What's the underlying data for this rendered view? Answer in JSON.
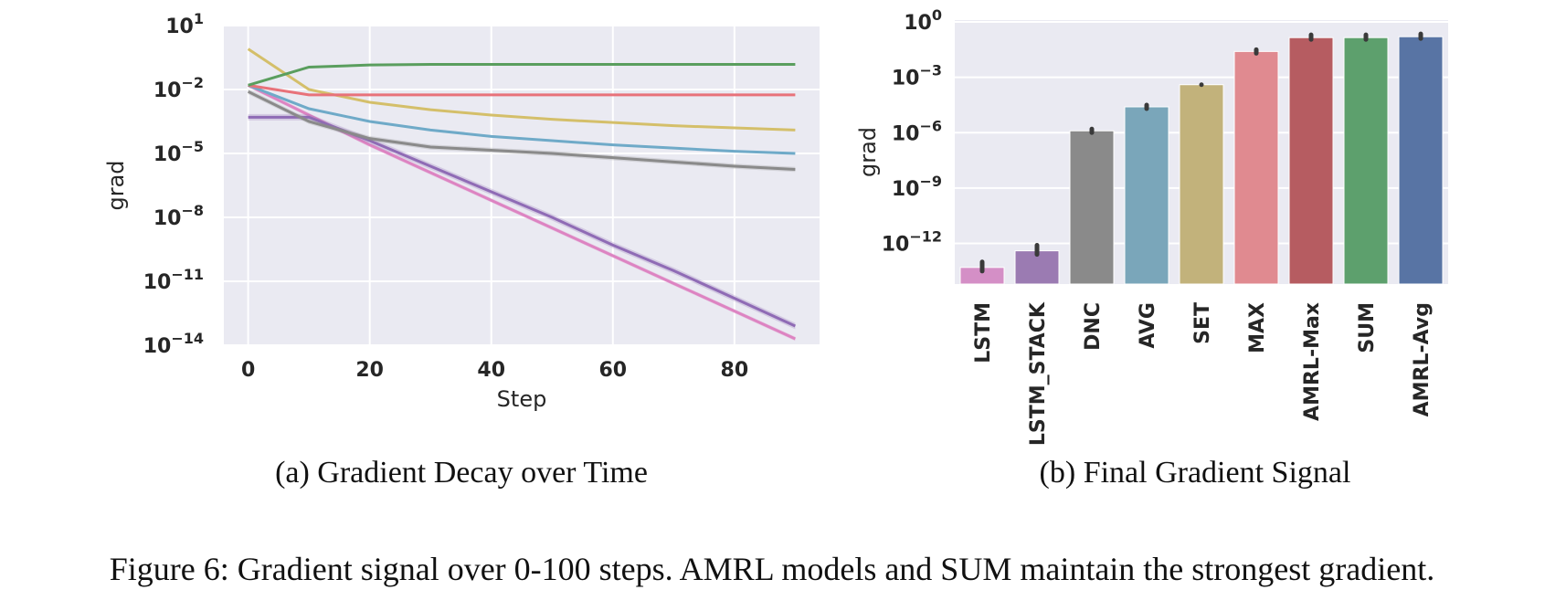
{
  "figure_caption": "Figure 6: Gradient signal over 0-100 steps. AMRL models and SUM maintain the strongest gradient.",
  "chart_data": [
    {
      "type": "line",
      "caption": "(a) Gradient Decay over Time",
      "xlabel": "Step",
      "ylabel": "grad",
      "yscale": "log",
      "xlim": [
        -4,
        94
      ],
      "ylim_exp": [
        -14,
        1
      ],
      "xticks": [
        0,
        20,
        40,
        60,
        80
      ],
      "yticks": [
        {
          "base": "10",
          "exp": "1",
          "value": 1
        },
        {
          "base": "10",
          "exp": "−2",
          "value": -2
        },
        {
          "base": "10",
          "exp": "−5",
          "value": -5
        },
        {
          "base": "10",
          "exp": "−8",
          "value": -8
        },
        {
          "base": "10",
          "exp": "−11",
          "value": -11
        },
        {
          "base": "10",
          "exp": "−14",
          "value": -14
        }
      ],
      "series": [
        {
          "name": "LSTM",
          "color": "#dd84c2",
          "x": [
            0,
            10,
            20,
            30,
            40,
            50,
            60,
            70,
            80,
            90
          ],
          "log10_grad": [
            -1.8,
            -3.2,
            -4.6,
            -5.9,
            -7.2,
            -8.5,
            -9.8,
            -11.1,
            -12.4,
            -13.7
          ],
          "band": 0.1
        },
        {
          "name": "LSTM_STACK",
          "color": "#8f6bb5",
          "x": [
            0,
            10,
            20,
            30,
            40,
            50,
            60,
            70,
            80,
            90
          ],
          "log10_grad": [
            -3.3,
            -3.3,
            -4.4,
            -5.6,
            -6.8,
            -8.0,
            -9.3,
            -10.5,
            -11.8,
            -13.1
          ],
          "band": 0.15
        },
        {
          "name": "DNC",
          "color": "#8a8a8a",
          "x": [
            0,
            10,
            20,
            30,
            40,
            50,
            60,
            70,
            80,
            90
          ],
          "log10_grad": [
            -2.1,
            -3.5,
            -4.3,
            -4.7,
            -4.85,
            -5.0,
            -5.2,
            -5.4,
            -5.6,
            -5.75
          ],
          "band": 0.12
        },
        {
          "name": "AVG",
          "color": "#6faac8",
          "x": [
            0,
            10,
            20,
            30,
            40,
            50,
            60,
            70,
            80,
            90
          ],
          "log10_grad": [
            -1.8,
            -2.9,
            -3.5,
            -3.9,
            -4.2,
            -4.4,
            -4.6,
            -4.75,
            -4.9,
            -5.0
          ],
          "band": 0.05
        },
        {
          "name": "SET",
          "color": "#d4bf6a",
          "x": [
            0,
            10,
            20,
            30,
            40,
            50,
            60,
            70,
            80,
            90
          ],
          "log10_grad": [
            -0.1,
            -2.0,
            -2.6,
            -2.95,
            -3.2,
            -3.4,
            -3.55,
            -3.7,
            -3.8,
            -3.9
          ],
          "band": 0.04
        },
        {
          "name": "MAX",
          "color": "#e8727a",
          "x": [
            0,
            10,
            20,
            30,
            40,
            50,
            60,
            70,
            80,
            90
          ],
          "log10_grad": [
            -1.8,
            -2.25,
            -2.25,
            -2.25,
            -2.25,
            -2.25,
            -2.25,
            -2.25,
            -2.25,
            -2.25
          ],
          "band": 0.03
        },
        {
          "name": "SUM",
          "color": "#5a9e5e",
          "x": [
            0,
            10,
            20,
            30,
            40,
            50,
            60,
            70,
            80,
            90
          ],
          "log10_grad": [
            -1.8,
            -0.95,
            -0.85,
            -0.82,
            -0.82,
            -0.82,
            -0.82,
            -0.82,
            -0.82,
            -0.82
          ],
          "band": 0.03
        }
      ]
    },
    {
      "type": "bar",
      "caption": "(b) Final Gradient Signal",
      "ylabel": "grad",
      "yscale": "log",
      "ylim_exp": [
        -14.2,
        0.1
      ],
      "yticks": [
        {
          "base": "10",
          "exp": "0",
          "value": 0
        },
        {
          "base": "10",
          "exp": "−3",
          "value": -3
        },
        {
          "base": "10",
          "exp": "−6",
          "value": -6
        },
        {
          "base": "10",
          "exp": "−9",
          "value": -9
        },
        {
          "base": "10",
          "exp": "−12",
          "value": -12
        }
      ],
      "categories": [
        "LSTM",
        "LSTM_STACK",
        "DNC",
        "AVG",
        "SET",
        "MAX",
        "AMRL-Max",
        "SUM",
        "AMRL-Avg"
      ],
      "log10_values": [
        -13.3,
        -12.4,
        -5.9,
        -4.6,
        -3.4,
        -1.6,
        -0.85,
        -0.85,
        -0.8
      ],
      "error_low": [
        -13.5,
        -12.6,
        -6.0,
        -4.7,
        -3.4,
        -1.7,
        -0.95,
        -0.95,
        -0.9
      ],
      "error_high": [
        -13.0,
        -12.1,
        -5.8,
        -4.5,
        -3.4,
        -1.5,
        -0.7,
        -0.7,
        -0.65
      ],
      "colors": [
        "#d48fc6",
        "#9b7bb2",
        "#8a8a8a",
        "#7aa6ba",
        "#c2b27b",
        "#e08a90",
        "#b65c61",
        "#5da06d",
        "#5874a4"
      ]
    }
  ]
}
